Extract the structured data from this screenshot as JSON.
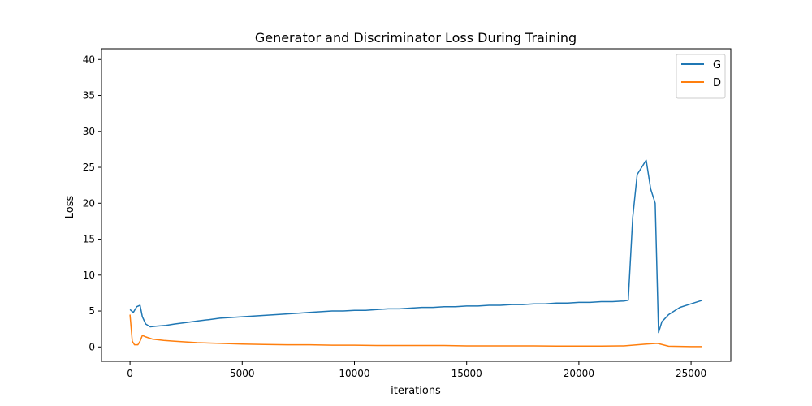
{
  "chart_data": {
    "type": "line",
    "title": "Generator and Discriminator Loss During Training",
    "xlabel": "iterations",
    "ylabel": "Loss",
    "xlim": [
      -1270,
      26770
    ],
    "ylim": [
      -2,
      41.5
    ],
    "xticks": [
      0,
      5000,
      10000,
      15000,
      20000,
      25000
    ],
    "yticks": [
      0,
      5,
      10,
      15,
      20,
      25,
      30,
      35,
      40
    ],
    "grid": false,
    "legend_position": "top-right",
    "series": [
      {
        "name": "G",
        "color": "#1f77b4",
        "x": [
          0,
          150,
          300,
          450,
          550,
          700,
          900,
          1200,
          1600,
          2000,
          2500,
          3000,
          3500,
          4000,
          4500,
          5000,
          5500,
          6000,
          6500,
          7000,
          7500,
          8000,
          8500,
          9000,
          9500,
          10000,
          10500,
          11000,
          11500,
          12000,
          12500,
          13000,
          13500,
          14000,
          14500,
          15000,
          15500,
          16000,
          16500,
          17000,
          17500,
          18000,
          18500,
          19000,
          19500,
          20000,
          20500,
          21000,
          21500,
          22000,
          22200,
          22400,
          22600,
          22800,
          23000,
          23200,
          23400,
          23550,
          23700,
          24000,
          24500,
          25000,
          25500
        ],
        "y": [
          5.2,
          4.8,
          5.6,
          5.8,
          4.2,
          3.2,
          2.8,
          2.9,
          3.0,
          3.2,
          3.4,
          3.6,
          3.8,
          4.0,
          4.1,
          4.2,
          4.3,
          4.4,
          4.5,
          4.6,
          4.7,
          4.8,
          4.9,
          5.0,
          5.0,
          5.1,
          5.1,
          5.2,
          5.3,
          5.3,
          5.4,
          5.5,
          5.5,
          5.6,
          5.6,
          5.7,
          5.7,
          5.8,
          5.8,
          5.9,
          5.9,
          6.0,
          6.0,
          6.1,
          6.1,
          6.2,
          6.2,
          6.3,
          6.3,
          6.4,
          6.5,
          18,
          24,
          25,
          26,
          22,
          20,
          2.0,
          3.5,
          4.5,
          5.5,
          6.0,
          6.5
        ]
      },
      {
        "name": "D",
        "color": "#ff7f0e",
        "x": [
          0,
          100,
          200,
          350,
          450,
          550,
          700,
          1000,
          1500,
          2000,
          3000,
          4000,
          5000,
          6000,
          7000,
          8000,
          9000,
          10000,
          11000,
          12000,
          13000,
          14000,
          15000,
          16000,
          17000,
          18000,
          19000,
          20000,
          21000,
          22000,
          23000,
          23500,
          24000,
          25000,
          25500
        ],
        "y": [
          4.5,
          0.8,
          0.3,
          0.3,
          0.8,
          1.6,
          1.4,
          1.1,
          0.9,
          0.8,
          0.6,
          0.5,
          0.4,
          0.35,
          0.3,
          0.3,
          0.25,
          0.25,
          0.2,
          0.2,
          0.2,
          0.2,
          0.15,
          0.15,
          0.15,
          0.15,
          0.12,
          0.12,
          0.12,
          0.15,
          0.4,
          0.5,
          0.1,
          0.05,
          0.05
        ]
      }
    ]
  }
}
